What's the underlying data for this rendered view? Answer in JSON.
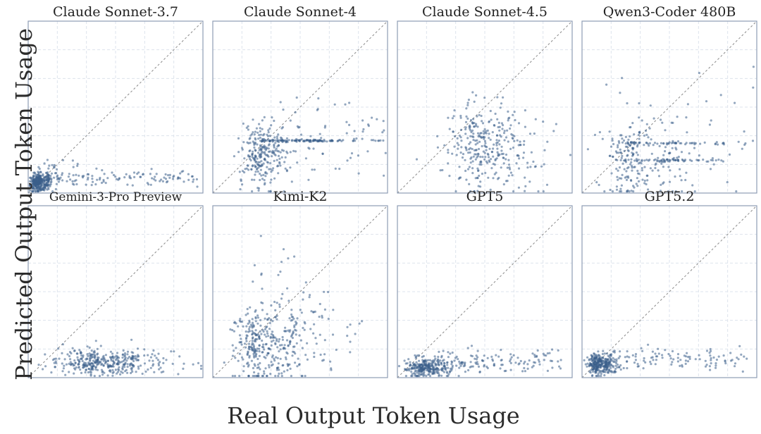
{
  "figure": {
    "xlabel": "Real Output Token Usage",
    "ylabel": "Predicted Output Token Usage"
  },
  "style": {
    "point_color": "#3b5f8a",
    "axis_color": "#8e9cb5",
    "grid_color": "#dde3ec",
    "diagonal_color": "#8a8a8a"
  },
  "chart_data": [
    {
      "type": "scatter",
      "title": "Claude Sonnet-3.7",
      "xlim": [
        0,
        1
      ],
      "ylim": [
        0,
        1
      ],
      "diagonal": true,
      "clusters": [
        {
          "n": 300,
          "cx": 0.06,
          "sx": 0.04,
          "cy": 0.06,
          "sy": 0.025
        },
        {
          "n": 110,
          "x": [
            0.1,
            0.97
          ],
          "cy": 0.09,
          "sy": 0.025
        },
        {
          "n": 30,
          "cx": 0.15,
          "sx": 0.08,
          "cy": 0.13,
          "sy": 0.03
        }
      ]
    },
    {
      "type": "scatter",
      "title": "Claude Sonnet-4",
      "xlim": [
        0,
        1
      ],
      "ylim": [
        0,
        1
      ],
      "diagonal": true,
      "clusters": [
        {
          "n": 260,
          "cx": 0.28,
          "sx": 0.09,
          "cy": 0.22,
          "sy": 0.09
        },
        {
          "n": 90,
          "x": [
            0.27,
            0.63
          ],
          "cy": 0.305,
          "sy": 0.003
        },
        {
          "n": 25,
          "x": [
            0.63,
            0.99
          ],
          "cy": 0.305,
          "sy": 0.003
        },
        {
          "n": 60,
          "x": [
            0.4,
            0.99
          ],
          "cy": 0.33,
          "sy": 0.12
        }
      ]
    },
    {
      "type": "scatter",
      "title": "Claude Sonnet-4.5",
      "xlim": [
        0,
        1
      ],
      "ylim": [
        0,
        1
      ],
      "diagonal": true,
      "clusters": [
        {
          "n": 330,
          "cx": 0.5,
          "sx": 0.17,
          "cy": 0.27,
          "sy": 0.12
        }
      ]
    },
    {
      "type": "scatter",
      "title": "Qwen3-Coder 480B",
      "xlim": [
        0,
        1
      ],
      "ylim": [
        0,
        1
      ],
      "diagonal": true,
      "clusters": [
        {
          "n": 200,
          "cx": 0.3,
          "sx": 0.15,
          "cy": 0.18,
          "sy": 0.12
        },
        {
          "n": 55,
          "x": [
            0.2,
            0.82
          ],
          "cy": 0.29,
          "sy": 0.004
        },
        {
          "n": 55,
          "x": [
            0.2,
            0.82
          ],
          "cy": 0.19,
          "sy": 0.004
        },
        {
          "n": 50,
          "x": [
            0.15,
            0.99
          ],
          "cy": 0.35,
          "sy": 0.15
        }
      ]
    },
    {
      "type": "scatter",
      "title": "Gemini-3-Pro Preview",
      "xlim": [
        0,
        1
      ],
      "ylim": [
        0,
        1
      ],
      "diagonal": true,
      "clusters": [
        {
          "n": 380,
          "cx": 0.4,
          "sx": 0.2,
          "cy": 0.09,
          "sy": 0.04
        }
      ]
    },
    {
      "type": "scatter",
      "title": "Kimi-K2",
      "xlim": [
        0,
        1
      ],
      "ylim": [
        0,
        1
      ],
      "diagonal": true,
      "clusters": [
        {
          "n": 300,
          "cx": 0.27,
          "sx": 0.12,
          "cy": 0.17,
          "sy": 0.11
        },
        {
          "n": 100,
          "cx": 0.47,
          "sx": 0.18,
          "cy": 0.26,
          "sy": 0.13
        },
        {
          "n": 14,
          "x": [
            0.2,
            0.5
          ],
          "cy": 0.67,
          "sy": 0.12
        }
      ]
    },
    {
      "type": "scatter",
      "title": "GPT5",
      "xlim": [
        0,
        1
      ],
      "ylim": [
        0,
        1
      ],
      "diagonal": true,
      "clusters": [
        {
          "n": 280,
          "cx": 0.16,
          "sx": 0.09,
          "cy": 0.06,
          "sy": 0.03
        },
        {
          "n": 120,
          "x": [
            0.2,
            0.95
          ],
          "cy": 0.09,
          "sy": 0.035
        }
      ]
    },
    {
      "type": "scatter",
      "title": "GPT5.2",
      "xlim": [
        0,
        1
      ],
      "ylim": [
        0,
        1
      ],
      "diagonal": true,
      "clusters": [
        {
          "n": 300,
          "cx": 0.1,
          "sx": 0.05,
          "cy": 0.08,
          "sy": 0.03
        },
        {
          "n": 110,
          "x": [
            0.15,
            0.95
          ],
          "cy": 0.11,
          "sy": 0.03
        }
      ]
    }
  ]
}
